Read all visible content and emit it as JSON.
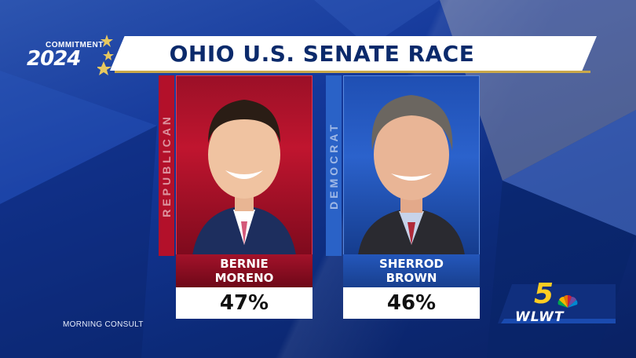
{
  "branding": {
    "commitment_label": "COMMITMENT",
    "year": "2024"
  },
  "header": {
    "title": "OHIO U.S. SENATE RACE"
  },
  "candidates": [
    {
      "party": "REPUBLICAN",
      "first_name": "BERNIE",
      "last_name": "MORENO",
      "percent": "47%",
      "party_color": "#b3102a"
    },
    {
      "party": "DEMOCRAT",
      "first_name": "SHERROD",
      "last_name": "BROWN",
      "percent": "46%",
      "party_color": "#2a62c7"
    }
  ],
  "source": "MORNING CONSULT",
  "station": {
    "channel": "5",
    "call_sign": "WLWT"
  },
  "icons": [
    "star-icon",
    "nbc-peacock-icon"
  ]
}
